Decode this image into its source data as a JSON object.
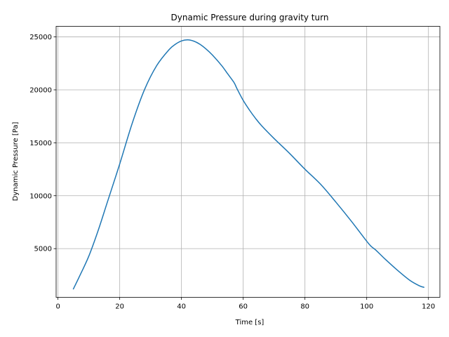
{
  "chart_data": {
    "type": "line",
    "title": "Dynamic Pressure during gravity turn",
    "xlabel": "Time [s]",
    "ylabel": "Dynamic Pressure [Pa]",
    "xlim": [
      -0.6,
      123.7
    ],
    "ylim": [
      400,
      26000
    ],
    "xticks": [
      0,
      20,
      40,
      60,
      80,
      100,
      120
    ],
    "yticks": [
      5000,
      10000,
      15000,
      20000,
      25000
    ],
    "grid": true,
    "line_color": "#1f77b4",
    "series": [
      {
        "x": [
          5,
          7,
          10,
          13,
          16,
          20,
          24,
          28,
          32,
          36,
          38,
          40,
          42,
          44,
          46,
          48,
          50,
          53,
          55,
          57,
          58,
          60,
          62,
          64,
          66,
          70,
          75,
          80,
          85,
          90,
          95,
          100,
          101.5,
          103,
          106,
          110,
          114,
          117,
          118.5
        ],
        "y": [
          1200,
          2400,
          4300,
          6700,
          9400,
          13000,
          16800,
          20000,
          22300,
          23800,
          24300,
          24620,
          24720,
          24600,
          24300,
          23850,
          23300,
          22300,
          21500,
          20700,
          20100,
          19000,
          18100,
          17300,
          16600,
          15400,
          14000,
          12500,
          11100,
          9400,
          7600,
          5700,
          5200,
          4850,
          4000,
          2950,
          2000,
          1500,
          1350
        ]
      }
    ]
  }
}
